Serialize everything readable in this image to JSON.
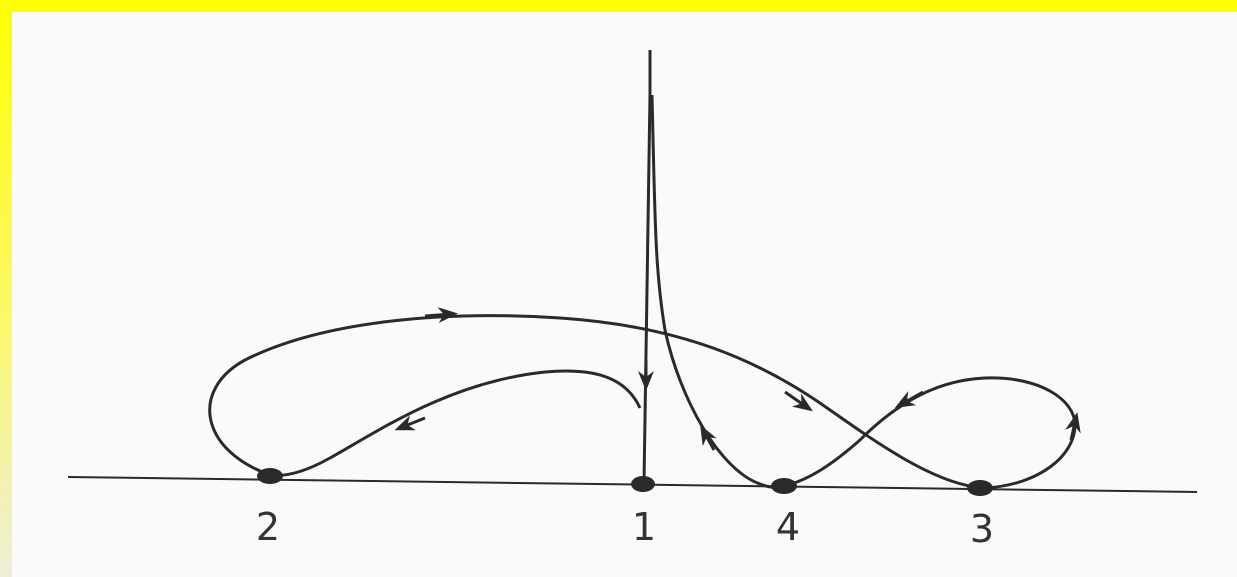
{
  "figure": {
    "background_color": "#ffff00",
    "paper_color": "#fafaf8",
    "ink_color": "#2a2a2a",
    "points": [
      {
        "id": "p2",
        "label": "2"
      },
      {
        "id": "p1",
        "label": "1"
      },
      {
        "id": "p4",
        "label": "4"
      },
      {
        "id": "p3",
        "label": "3"
      }
    ]
  }
}
